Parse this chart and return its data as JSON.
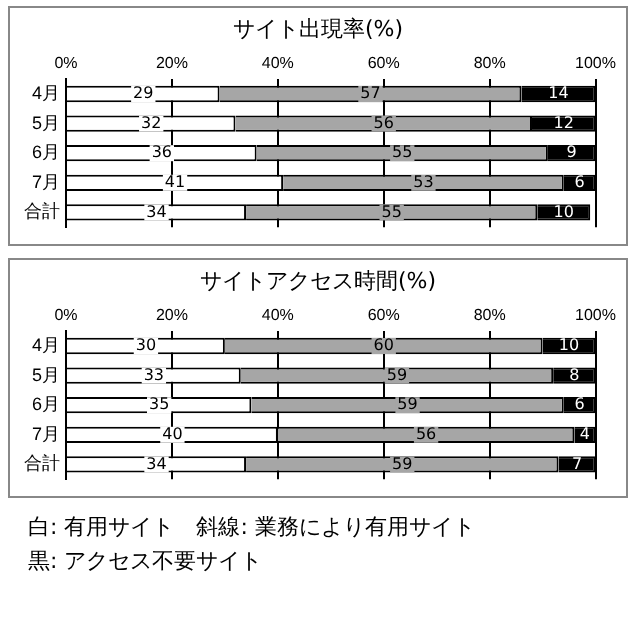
{
  "chart_data": [
    {
      "type": "bar",
      "title": "サイト出現率(%)",
      "orientation": "horizontal",
      "stacked": true,
      "categories": [
        "4月",
        "5月",
        "6月",
        "7月",
        "合計"
      ],
      "series": [
        {
          "color": "#ffffff",
          "values": [
            29,
            32,
            36,
            41,
            34
          ]
        },
        {
          "color": "#a6a6a6",
          "values": [
            57,
            56,
            55,
            53,
            55
          ]
        },
        {
          "color": "#000000",
          "values": [
            14,
            12,
            9,
            6,
            10
          ]
        }
      ],
      "xlim": [
        0,
        100
      ],
      "xticks": [
        {
          "value": 0,
          "label": "0%"
        },
        {
          "value": 20,
          "label": "20%"
        },
        {
          "value": 40,
          "label": "40%"
        },
        {
          "value": 60,
          "label": "60%"
        },
        {
          "value": 80,
          "label": "80%"
        },
        {
          "value": 100,
          "label": "100%"
        }
      ],
      "grid": "x",
      "data_labels": true
    },
    {
      "type": "bar",
      "title": "サイトアクセス時間(%)",
      "orientation": "horizontal",
      "stacked": true,
      "categories": [
        "4月",
        "5月",
        "6月",
        "7月",
        "合計"
      ],
      "series": [
        {
          "color": "#ffffff",
          "values": [
            30,
            33,
            35,
            40,
            34
          ]
        },
        {
          "color": "#a6a6a6",
          "values": [
            60,
            59,
            59,
            56,
            59
          ]
        },
        {
          "color": "#000000",
          "values": [
            10,
            8,
            6,
            4,
            7
          ]
        }
      ],
      "xlim": [
        0,
        100
      ],
      "xticks": [
        {
          "value": 0,
          "label": "0%"
        },
        {
          "value": 20,
          "label": "20%"
        },
        {
          "value": 40,
          "label": "40%"
        },
        {
          "value": 60,
          "label": "60%"
        },
        {
          "value": 80,
          "label": "80%"
        },
        {
          "value": 100,
          "label": "100%"
        }
      ],
      "grid": "x",
      "data_labels": true,
      "annotations": [
        "白: 有用サイト　斜線: 業務により有用サイト",
        "黒: アクセス不要サイト"
      ]
    }
  ]
}
